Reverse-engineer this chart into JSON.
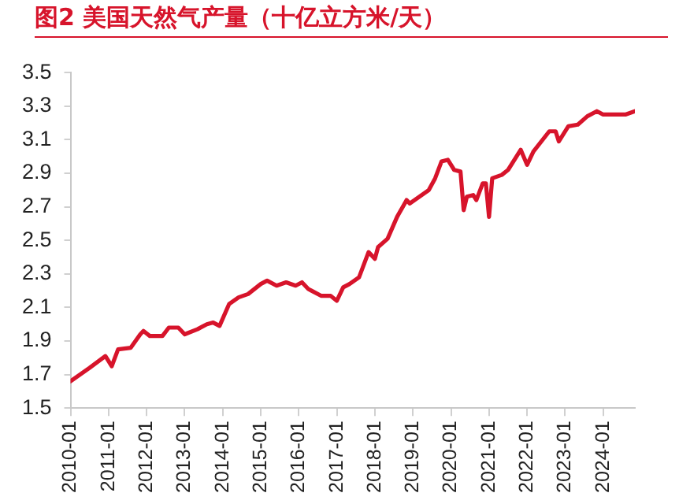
{
  "chart_data": {
    "type": "line",
    "title": "图2  美国天然气产量（十亿立方米/天）",
    "x": [
      "2010-01",
      "2010-04",
      "2010-07",
      "2010-12",
      "2011-02",
      "2011-04",
      "2011-08",
      "2011-11",
      "2011-12",
      "2012-02",
      "2012-06",
      "2012-08",
      "2012-11",
      "2013-01",
      "2013-05",
      "2013-08",
      "2013-10",
      "2013-12",
      "2014-03",
      "2014-06",
      "2014-09",
      "2015-01",
      "2015-03",
      "2015-06",
      "2015-09",
      "2015-12",
      "2016-02",
      "2016-04",
      "2016-05",
      "2016-08",
      "2016-11",
      "2017-01",
      "2017-03",
      "2017-05",
      "2017-08",
      "2017-11",
      "2018-01",
      "2018-02",
      "2018-05",
      "2018-08",
      "2018-11",
      "2018-12",
      "2019-06",
      "2019-08",
      "2019-10",
      "2019-12",
      "2020-02",
      "2020-04",
      "2020-05",
      "2020-06",
      "2020-08",
      "2020-09",
      "2020-11",
      "2020-12",
      "2021-01",
      "2021-02",
      "2021-05",
      "2021-07",
      "2021-11",
      "2022-01",
      "2022-03",
      "2022-08",
      "2022-10",
      "2022-11",
      "2023-02",
      "2023-05",
      "2023-08",
      "2023-11",
      "2024-01",
      "2024-08",
      "2024-11"
    ],
    "series": [
      {
        "color": "#d7142b",
        "values": [
          1.66,
          1.7,
          1.74,
          1.81,
          1.75,
          1.85,
          1.86,
          1.94,
          1.96,
          1.93,
          1.93,
          1.98,
          1.98,
          1.94,
          1.97,
          2.0,
          2.01,
          1.99,
          2.12,
          2.16,
          2.18,
          2.24,
          2.26,
          2.23,
          2.25,
          2.23,
          2.25,
          2.21,
          2.2,
          2.17,
          2.17,
          2.14,
          2.22,
          2.24,
          2.28,
          2.43,
          2.39,
          2.46,
          2.51,
          2.64,
          2.74,
          2.72,
          2.8,
          2.87,
          2.97,
          2.98,
          2.92,
          2.91,
          2.68,
          2.76,
          2.77,
          2.74,
          2.84,
          2.84,
          2.64,
          2.87,
          2.89,
          2.92,
          3.04,
          2.95,
          3.03,
          3.15,
          3.15,
          3.09,
          3.18,
          3.19,
          3.24,
          3.27,
          3.25,
          3.25,
          3.27
        ]
      }
    ],
    "xlim": [
      "2010-01",
      "2024-11"
    ],
    "xticks": [
      "2010-01",
      "2011-01",
      "2012-01",
      "2013-01",
      "2014-01",
      "2015-01",
      "2016-01",
      "2017-01",
      "2018-01",
      "2019-01",
      "2020-01",
      "2021-01",
      "2022-01",
      "2023-01",
      "2024-01"
    ],
    "ylim": [
      1.5,
      3.5
    ],
    "yticks": [
      1.5,
      1.7,
      1.9,
      2.1,
      2.3,
      2.5,
      2.7,
      2.9,
      3.1,
      3.3,
      3.5
    ],
    "grid": false,
    "legend": false,
    "marker": "none",
    "line_style": "solid"
  }
}
